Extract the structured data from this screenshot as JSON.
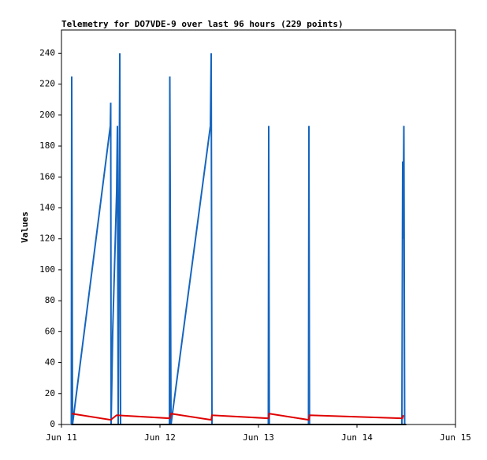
{
  "chart_data": {
    "type": "line",
    "title": "Telemetry for DO7VDE-9 over last 96 hours (229 points)",
    "y_label": "Values",
    "xlim": [
      0,
      4
    ],
    "xticks": [
      {
        "value": 0,
        "label": "Jun 11"
      },
      {
        "value": 1,
        "label": "Jun 12"
      },
      {
        "value": 2,
        "label": "Jun 13"
      },
      {
        "value": 3,
        "label": "Jun 14"
      },
      {
        "value": 4,
        "label": "Jun 15"
      }
    ],
    "ylim": [
      0,
      255
    ],
    "yticks": [
      0,
      20,
      40,
      60,
      80,
      100,
      120,
      140,
      160,
      180,
      200,
      220,
      240
    ],
    "grid": false,
    "series": [
      {
        "color": "#1565c0",
        "x": [
          0.1,
          0.104,
          0.112,
          0.496,
          0.5,
          0.504,
          0.52,
          0.56,
          0.568,
          0.576,
          0.592,
          0.6,
          1.096,
          1.1,
          1.112,
          1.512,
          1.52,
          1.528,
          2.1,
          2.104,
          2.11,
          2.508,
          2.512,
          2.518,
          3.456,
          3.464,
          3.468,
          3.476,
          3.484
        ],
        "values": [
          0,
          225,
          0,
          193,
          208,
          0,
          60,
          150,
          193,
          0,
          240,
          0,
          0,
          225,
          0,
          193,
          240,
          0,
          0,
          193,
          0,
          0,
          193,
          0,
          0,
          170,
          120,
          193,
          0
        ]
      },
      {
        "color": "#e00000",
        "x": [
          0.104,
          0.5,
          0.56,
          1.1,
          1.112,
          1.52,
          1.528,
          2.1,
          2.11,
          2.51,
          2.52,
          3.46,
          3.47
        ],
        "values": [
          7,
          3,
          6,
          4,
          7,
          3,
          6,
          4,
          7,
          3,
          6,
          4,
          6
        ]
      },
      {
        "color": "#000000",
        "x": [
          0.1,
          3.5
        ],
        "values": [
          0,
          0
        ]
      }
    ]
  }
}
